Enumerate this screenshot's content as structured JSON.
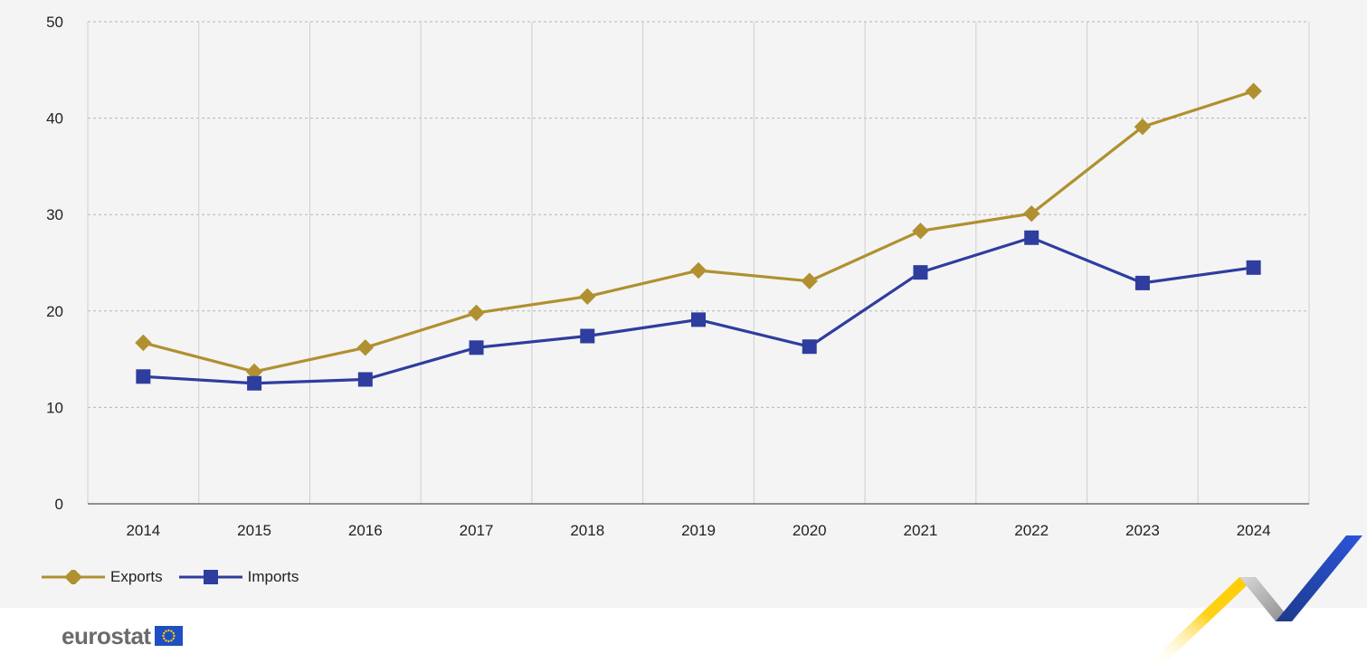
{
  "chart_data": {
    "type": "line",
    "categories": [
      "2014",
      "2015",
      "2016",
      "2017",
      "2018",
      "2019",
      "2020",
      "2021",
      "2022",
      "2023",
      "2024"
    ],
    "series": [
      {
        "name": "Exports",
        "color": "#b09030",
        "marker": "diamond",
        "values": [
          16.7,
          13.7,
          16.2,
          19.8,
          21.5,
          24.2,
          23.1,
          28.3,
          30.1,
          39.1,
          42.8
        ]
      },
      {
        "name": "Imports",
        "color": "#2e3d9e",
        "marker": "square",
        "values": [
          13.2,
          12.5,
          12.9,
          16.2,
          17.4,
          19.1,
          16.3,
          24.0,
          27.6,
          22.9,
          24.5
        ]
      }
    ],
    "ylim": [
      0,
      50
    ],
    "yticks": [
      0,
      10,
      20,
      30,
      40,
      50
    ],
    "grid": true,
    "legend_position": "bottom-left",
    "xlabel": "",
    "ylabel": ""
  },
  "branding": {
    "logo_text": "eurostat",
    "flag_color": "#1f4fc4",
    "star_color": "#ffcc00"
  }
}
